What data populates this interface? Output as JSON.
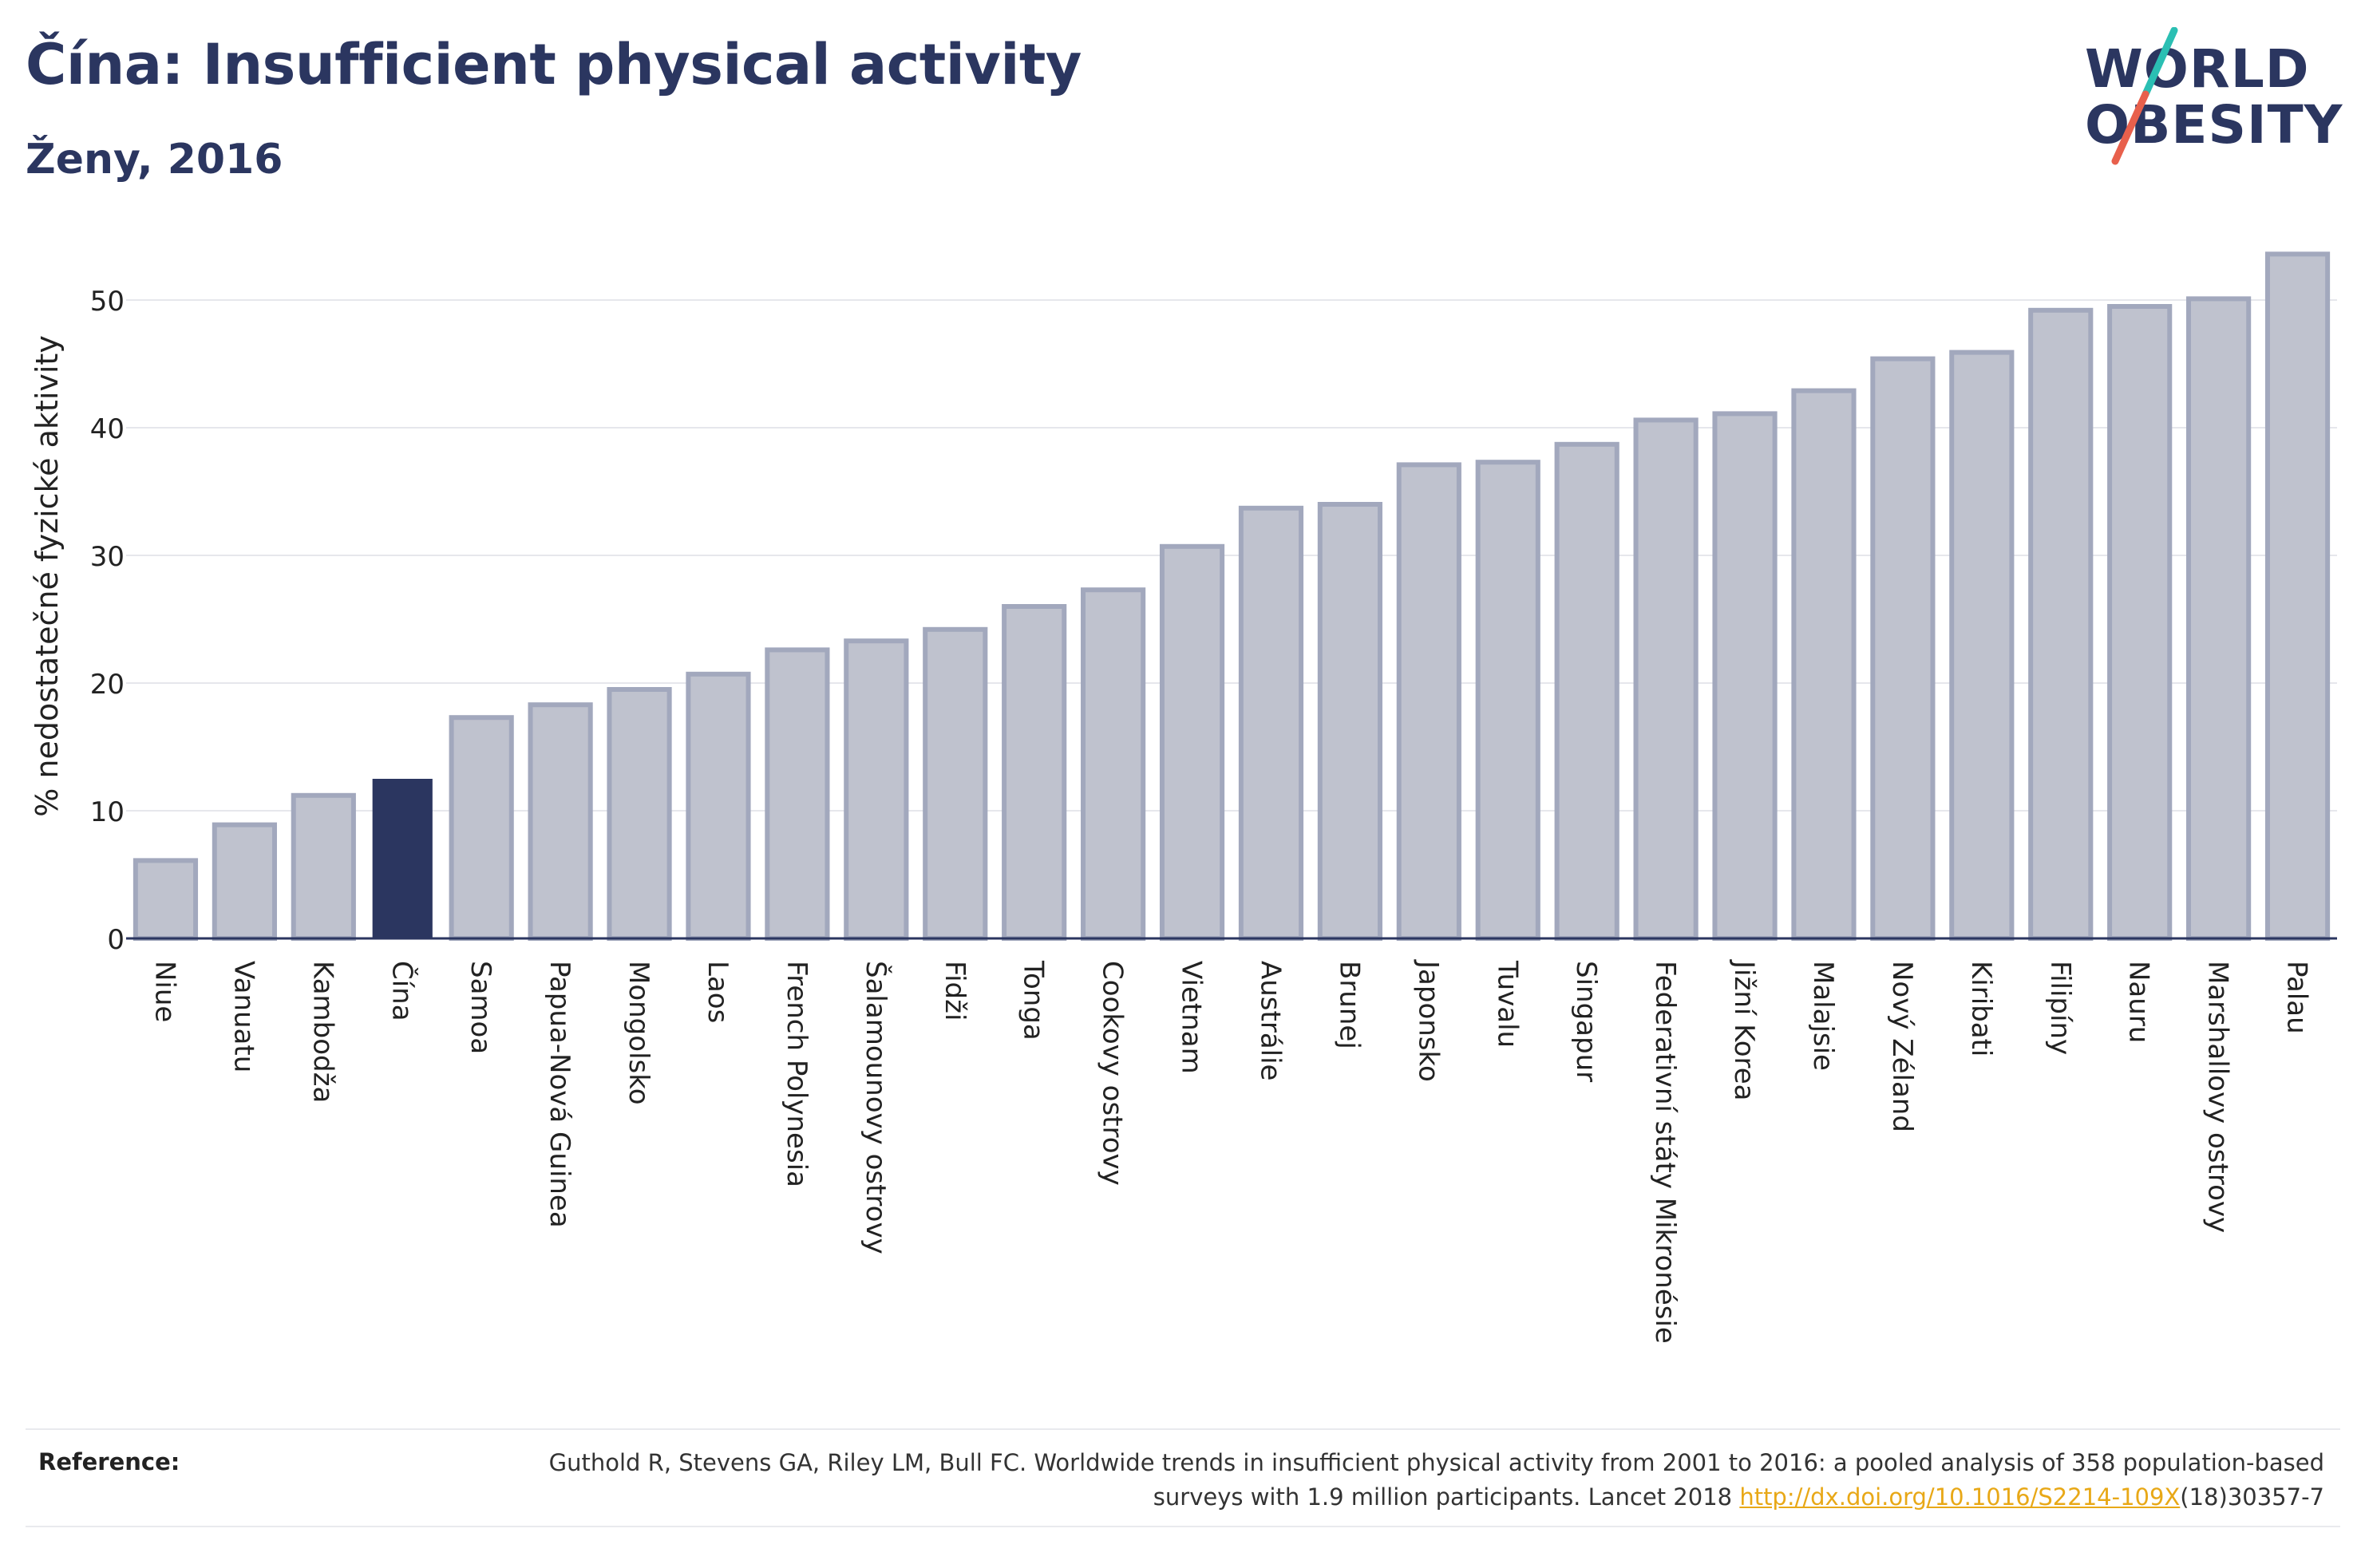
{
  "header": {
    "title": "Čína: Insufficient physical activity",
    "subtitle": "Ženy, 2016"
  },
  "logo": {
    "line1": "WORLD",
    "line2": "OBESITY",
    "colors": {
      "text": "#2b3660",
      "slash_top": "#2bbfb3",
      "slash_bottom": "#e8604c"
    }
  },
  "chart_data": {
    "type": "bar",
    "title": "Čína: Insufficient physical activity",
    "subtitle": "Ženy, 2016",
    "xlabel": "",
    "ylabel": "% nedostatečné fyzické aktivity",
    "ylim": [
      0,
      55
    ],
    "yticks": [
      0,
      10,
      20,
      30,
      40,
      50
    ],
    "grid": true,
    "highlight": "Čína",
    "colors": {
      "bar": "#bfc2ce",
      "bar_edge": "#a2a8bd",
      "highlight": "#2b3660",
      "grid": "#e6e7ec"
    },
    "categories": [
      "Niue",
      "Vanuatu",
      "Kambodža",
      "Čína",
      "Samoa",
      "Papua-Nová Guinea",
      "Mongolsko",
      "Laos",
      "French Polynesia",
      "Šalamounovy ostrovy",
      "Fidži",
      "Tonga",
      "Cookovy ostrovy",
      "Vietnam",
      "Austrálie",
      "Brunej",
      "Japonsko",
      "Tuvalu",
      "Singapur",
      "Federativní státy Mikronésie",
      "Jižní Korea",
      "Malajsie",
      "Nový Zéland",
      "Kiribati",
      "Filipíny",
      "Nauru",
      "Marshallovy ostrovy",
      "Palau"
    ],
    "values": [
      6.1,
      8.9,
      11.2,
      12.5,
      17.3,
      18.3,
      19.5,
      20.7,
      22.6,
      23.3,
      24.2,
      26.0,
      27.3,
      30.7,
      33.7,
      34.0,
      37.1,
      37.3,
      38.7,
      40.6,
      41.1,
      42.9,
      45.4,
      45.9,
      49.2,
      49.5,
      50.1,
      53.6
    ]
  },
  "reference": {
    "label": "Reference:",
    "text_part1": "Guthold R, Stevens GA, Riley LM, Bull FC. Worldwide trends in insufficient physical activity from 2001 to 2016: a pooled analysis of 358 population-based surveys with 1.9 million participants. Lancet 2018 ",
    "link": "http://dx.doi.org/10.1016/S2214-109X",
    "text_part2": "(18)30357-7"
  }
}
